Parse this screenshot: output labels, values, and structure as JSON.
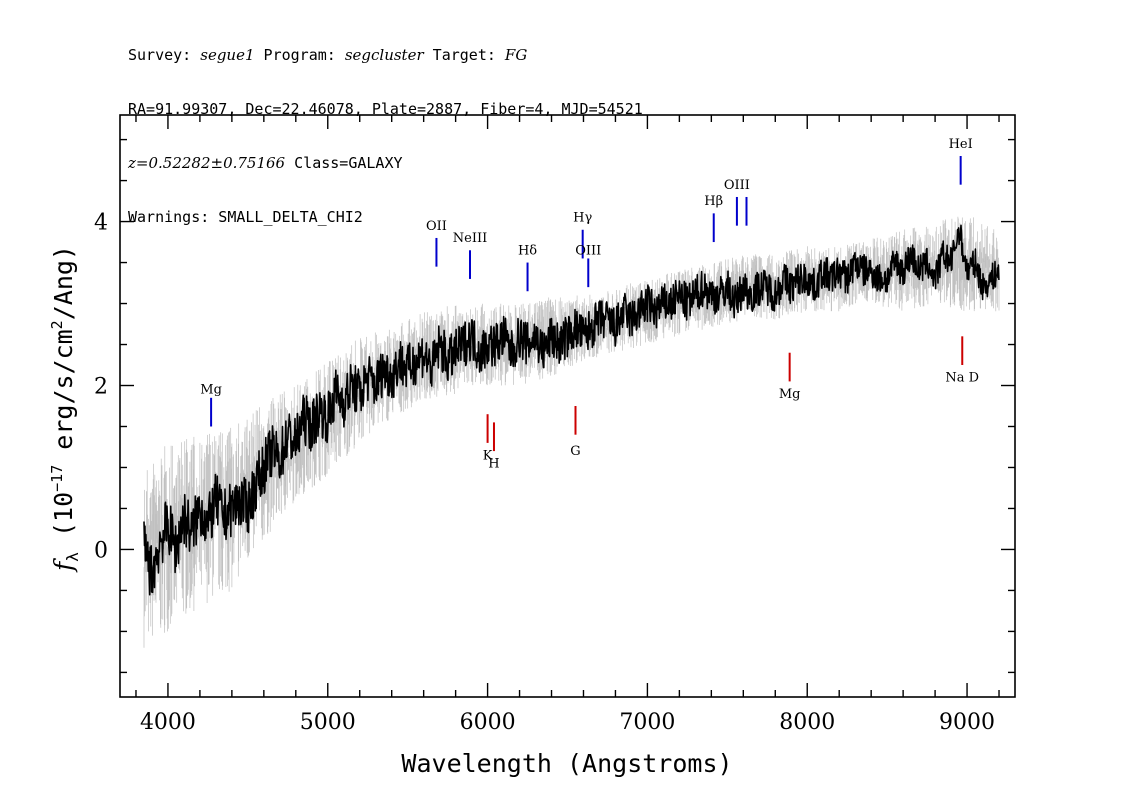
{
  "header": {
    "survey_label": "Survey:",
    "survey": "segue1",
    "program_label": "Program:",
    "program": "segcluster",
    "target_label": "Target:",
    "target": "FG",
    "line2": "RA=91.99307, Dec=22.46078, Plate=2887, Fiber=4, MJD=54521",
    "redshift": "z=0.52282±0.75166",
    "class": "Class=GALAXY",
    "warnings": "Warnings: SMALL_DELTA_CHI2"
  },
  "chart_data": {
    "type": "line",
    "xlabel": "Wavelength (Angstroms)",
    "ylabel_parts": [
      "f",
      "λ",
      " (10",
      "−17",
      " erg/s/cm",
      "2",
      "/Ang)"
    ],
    "xlim": [
      3700,
      9300
    ],
    "ylim": [
      -1.8,
      5.3
    ],
    "x_ticks": [
      4000,
      5000,
      6000,
      7000,
      8000,
      9000
    ],
    "y_ticks": [
      0,
      2,
      4
    ],
    "colors": {
      "flux": "#000000",
      "noise": "#c0c0c0",
      "emission": "#0000cc",
      "absorption": "#cc0000"
    },
    "series": [
      {
        "style": "smoothed-flux",
        "x": [
          3850,
          3900,
          3950,
          4000,
          4050,
          4100,
          4150,
          4200,
          4250,
          4300,
          4350,
          4400,
          4450,
          4500,
          4550,
          4600,
          4650,
          4700,
          4750,
          4800,
          4850,
          4900,
          4950,
          5000,
          5050,
          5100,
          5150,
          5200,
          5250,
          5300,
          5350,
          5400,
          5450,
          5500,
          5550,
          5600,
          5650,
          5700,
          5750,
          5800,
          5850,
          5900,
          5950,
          6000,
          6050,
          6100,
          6150,
          6200,
          6250,
          6300,
          6350,
          6400,
          6450,
          6500,
          6550,
          6600,
          6650,
          6700,
          6750,
          6800,
          6850,
          6900,
          6950,
          7000,
          7050,
          7100,
          7150,
          7200,
          7250,
          7300,
          7350,
          7400,
          7450,
          7500,
          7550,
          7600,
          7650,
          7700,
          7750,
          7800,
          7850,
          7900,
          7950,
          8000,
          8050,
          8100,
          8150,
          8200,
          8250,
          8300,
          8350,
          8400,
          8450,
          8500,
          8550,
          8600,
          8650,
          8700,
          8750,
          8800,
          8850,
          8900,
          8950,
          9000,
          9050,
          9100,
          9150,
          9200
        ],
        "y": [
          0.0,
          -0.3,
          0.1,
          0.3,
          0.0,
          0.4,
          0.2,
          0.5,
          0.3,
          0.6,
          0.4,
          0.5,
          0.6,
          0.5,
          0.8,
          1.0,
          1.2,
          1.1,
          1.4,
          1.3,
          1.6,
          1.5,
          1.7,
          1.6,
          1.9,
          1.8,
          2.0,
          1.9,
          2.1,
          2.0,
          2.2,
          2.1,
          2.3,
          2.2,
          2.3,
          2.4,
          2.2,
          2.5,
          2.3,
          2.4,
          2.5,
          2.6,
          2.4,
          2.5,
          2.5,
          2.6,
          2.4,
          2.6,
          2.5,
          2.6,
          2.4,
          2.6,
          2.5,
          2.6,
          2.7,
          2.6,
          2.7,
          2.8,
          2.8,
          2.7,
          2.9,
          2.8,
          2.9,
          3.0,
          2.9,
          3.0,
          3.0,
          3.1,
          3.0,
          3.1,
          3.2,
          3.1,
          3.1,
          3.2,
          3.0,
          3.2,
          3.1,
          3.2,
          3.2,
          3.1,
          3.3,
          3.2,
          3.3,
          3.3,
          3.2,
          3.4,
          3.3,
          3.4,
          3.3,
          3.5,
          3.4,
          3.4,
          3.3,
          3.3,
          3.5,
          3.4,
          3.6,
          3.4,
          3.5,
          3.3,
          3.6,
          3.5,
          3.9,
          3.4,
          3.5,
          3.2,
          3.3,
          3.4
        ]
      },
      {
        "style": "noise-band",
        "x": [
          3850,
          4000,
          4200,
          4400,
          4600,
          4800,
          5000,
          5200,
          5400,
          5600,
          5800,
          6000,
          6200,
          6400,
          6600,
          6800,
          7000,
          7200,
          7400,
          7600,
          7800,
          8000,
          8200,
          8400,
          8600,
          8800,
          9000,
          9200
        ],
        "y_low": [
          -1.2,
          -1.0,
          -0.7,
          -0.5,
          0.1,
          0.6,
          0.9,
          1.3,
          1.6,
          1.8,
          1.9,
          2.0,
          2.0,
          2.1,
          2.3,
          2.4,
          2.5,
          2.6,
          2.7,
          2.8,
          2.8,
          2.9,
          2.9,
          3.0,
          2.9,
          3.0,
          2.9,
          2.9
        ],
        "y_high": [
          1.0,
          1.3,
          1.4,
          1.5,
          1.8,
          2.0,
          2.3,
          2.6,
          2.7,
          2.9,
          3.0,
          3.0,
          3.0,
          3.1,
          3.1,
          3.2,
          3.3,
          3.4,
          3.5,
          3.6,
          3.6,
          3.7,
          3.7,
          3.8,
          3.9,
          4.0,
          4.1,
          3.9
        ]
      }
    ],
    "emission_lines": [
      {
        "label": "Mg",
        "x": 4270,
        "y1": 1.5,
        "y2": 1.85,
        "label_y": 1.9
      },
      {
        "label": "OII",
        "x": 5680,
        "y1": 3.45,
        "y2": 3.8,
        "label_y": 3.9
      },
      {
        "label": "NeIII",
        "x": 5890,
        "y1": 3.3,
        "y2": 3.65,
        "label_y": 3.75
      },
      {
        "label": "Hδ",
        "x": 6250,
        "y1": 3.15,
        "y2": 3.5,
        "label_y": 3.6
      },
      {
        "label": "Hγ",
        "x": 6595,
        "y1": 3.55,
        "y2": 3.9,
        "label_y": 4.0
      },
      {
        "label": "OIII",
        "x": 6630,
        "y1": 3.2,
        "y2": 3.55,
        "label_y": 3.6
      },
      {
        "label": "Hβ",
        "x": 7415,
        "y1": 3.75,
        "y2": 4.1,
        "label_y": 4.2
      },
      {
        "label": "OIII",
        "x": 7560,
        "y1": 3.95,
        "y2": 4.3,
        "label_y": 4.4
      },
      {
        "label": "",
        "x": 7620,
        "y1": 3.95,
        "y2": 4.3,
        "label_y": 4.4
      },
      {
        "label": "HeI",
        "x": 8960,
        "y1": 4.45,
        "y2": 4.8,
        "label_y": 4.9
      }
    ],
    "absorption_lines": [
      {
        "label": "K",
        "x": 6000,
        "y1": 1.3,
        "y2": 1.65,
        "label_y": 1.1
      },
      {
        "label": "H",
        "x": 6040,
        "y1": 1.2,
        "y2": 1.55,
        "label_y": 1.0
      },
      {
        "label": "G",
        "x": 6550,
        "y1": 1.4,
        "y2": 1.75,
        "label_y": 1.15
      },
      {
        "label": "Mg",
        "x": 7890,
        "y1": 2.05,
        "y2": 2.4,
        "label_y": 1.85
      },
      {
        "label": "Na D",
        "x": 8970,
        "y1": 2.25,
        "y2": 2.6,
        "label_y": 2.05
      }
    ]
  }
}
